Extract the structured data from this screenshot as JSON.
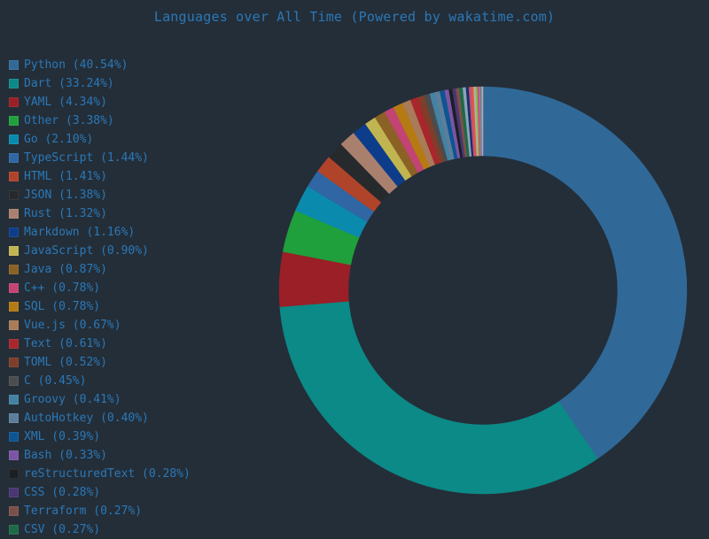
{
  "title": "Languages over All Time (Powered by wakatime.com)",
  "colors": {
    "background": "#242e38",
    "text": "#2a78b8"
  },
  "chart_data": {
    "type": "pie",
    "variant": "donut",
    "title": "Languages over All Time (Powered by wakatime.com)",
    "legend_position": "left",
    "center": [
      545,
      328
    ],
    "outer_radius": 230,
    "inner_radius": 152,
    "start_angle_deg": 0,
    "direction": "clockwise",
    "series": [
      {
        "name": "Python",
        "value": 40.54,
        "color": "#306998"
      },
      {
        "name": "Dart",
        "value": 33.24,
        "color": "#0b8a87"
      },
      {
        "name": "YAML",
        "value": 4.34,
        "color": "#9a1f26"
      },
      {
        "name": "Other",
        "value": 3.38,
        "color": "#1fa03c"
      },
      {
        "name": "Go",
        "value": 2.1,
        "color": "#0a8aad"
      },
      {
        "name": "TypeScript",
        "value": 1.44,
        "color": "#2f66a3"
      },
      {
        "name": "HTML",
        "value": 1.41,
        "color": "#b0442a"
      },
      {
        "name": "JSON",
        "value": 1.38,
        "color": "#262a2d"
      },
      {
        "name": "Rust",
        "value": 1.32,
        "color": "#a9806e"
      },
      {
        "name": "Markdown",
        "value": 1.16,
        "color": "#0d3d8a"
      },
      {
        "name": "JavaScript",
        "value": 0.9,
        "color": "#c1b552"
      },
      {
        "name": "Java",
        "value": 0.87,
        "color": "#8b6125"
      },
      {
        "name": "C++",
        "value": 0.78,
        "color": "#c24472"
      },
      {
        "name": "SQL",
        "value": 0.78,
        "color": "#b57a12"
      },
      {
        "name": "Vue.js",
        "value": 0.67,
        "color": "#a97b58"
      },
      {
        "name": "Text",
        "value": 0.61,
        "color": "#a8262c"
      },
      {
        "name": "TOML",
        "value": 0.52,
        "color": "#7f3e2a"
      },
      {
        "name": "C",
        "value": 0.45,
        "color": "#4a4c4e"
      },
      {
        "name": "Groovy",
        "value": 0.41,
        "color": "#4382a3"
      },
      {
        "name": "AutoHotkey",
        "value": 0.4,
        "color": "#5d7d9b"
      },
      {
        "name": "XML",
        "value": 0.39,
        "color": "#0c5592"
      },
      {
        "name": "Bash",
        "value": 0.33,
        "color": "#7b55a3"
      },
      {
        "name": "reStructuredText",
        "value": 0.28,
        "color": "#1b1f23"
      },
      {
        "name": "CSS",
        "value": 0.28,
        "color": "#4a3674"
      },
      {
        "name": "Terraform",
        "value": 0.27,
        "color": "#7a5148"
      },
      {
        "name": "CSV",
        "value": 0.27,
        "color": "#1d6a47"
      }
    ],
    "unlabeled_tail": [
      {
        "value": 0.25,
        "color": "#8aa3b8"
      },
      {
        "value": 0.22,
        "color": "#1a2e6a"
      },
      {
        "value": 0.2,
        "color": "#c2507a"
      },
      {
        "value": 0.18,
        "color": "#e05a3a"
      },
      {
        "value": 0.16,
        "color": "#b0b0b0"
      },
      {
        "value": 0.14,
        "color": "#7fc241"
      },
      {
        "value": 0.12,
        "color": "#d04a6a"
      },
      {
        "value": 0.11,
        "color": "#9a7abf"
      },
      {
        "value": 0.1,
        "color": "#5a8a6a"
      },
      {
        "value": 0.1,
        "color": "#c0a0c0"
      }
    ]
  }
}
